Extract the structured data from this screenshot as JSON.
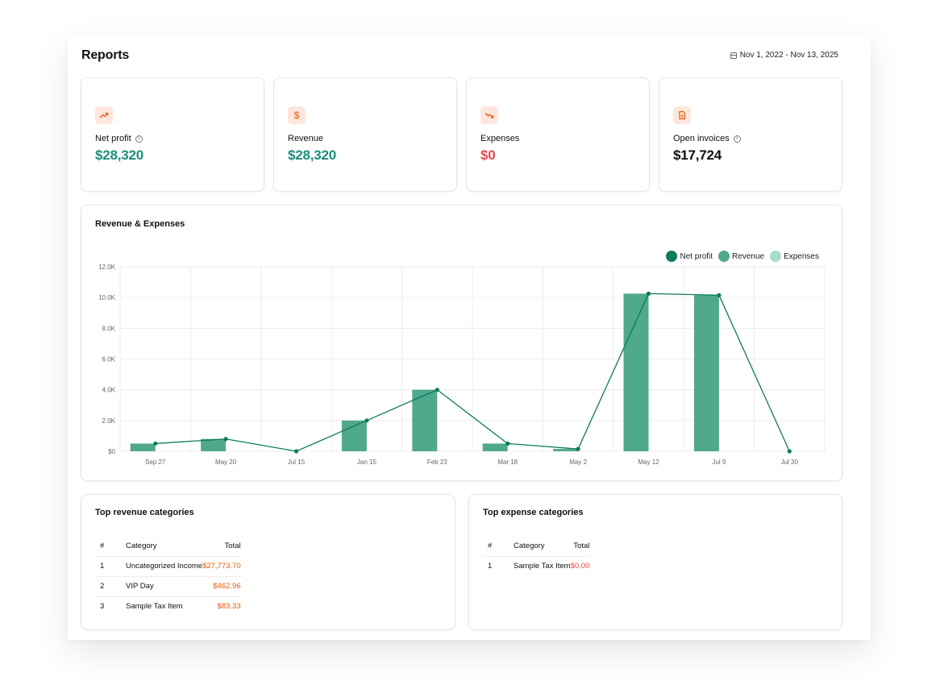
{
  "header": {
    "title": "Reports",
    "date_range": "Nov 1, 2022 - Nov 13, 2025"
  },
  "kpis": [
    {
      "label": "Net profit",
      "value": "$28,320",
      "icon": "trending-up-icon",
      "info": true,
      "tone": "green"
    },
    {
      "label": "Revenue",
      "value": "$28,320",
      "icon": "dollar-icon",
      "info": false,
      "tone": "green"
    },
    {
      "label": "Expenses",
      "value": "$0",
      "icon": "trending-down-icon",
      "info": false,
      "tone": "red"
    },
    {
      "label": "Open invoices",
      "value": "$17,724",
      "icon": "document-icon",
      "info": true,
      "tone": "dark"
    }
  ],
  "chart": {
    "title": "Revenue & Expenses"
  },
  "chart_data": {
    "type": "bar",
    "categories": [
      "Sep 27",
      "May 20",
      "Jul 15",
      "Jan 15",
      "Feb 23",
      "Mar 18",
      "May 2",
      "May 12",
      "Jul 9",
      "Jul 30"
    ],
    "series": [
      {
        "name": "Net profit",
        "type": "line",
        "color": "#0f7a60",
        "values": [
          500,
          800,
          0,
          2000,
          4000,
          500,
          150,
          10250,
          10150,
          0
        ]
      },
      {
        "name": "Revenue",
        "type": "bar",
        "color": "#4fa98c",
        "values": [
          500,
          800,
          0,
          2000,
          4000,
          500,
          150,
          10250,
          10150,
          0
        ]
      },
      {
        "name": "Expenses",
        "type": "bar",
        "color": "#a8dcc9",
        "values": [
          0,
          0,
          0,
          0,
          0,
          0,
          0,
          0,
          0,
          0
        ]
      }
    ],
    "y_ticks": [
      "$0",
      "2.0K",
      "4.0K",
      "6.0K",
      "8.0K",
      "10.0K",
      "12.0K"
    ],
    "ylim": [
      0,
      12000
    ],
    "grid": true,
    "legend": "top-right"
  },
  "revenue_table": {
    "title": "Top revenue categories",
    "headers": [
      "#",
      "Category",
      "Total"
    ],
    "rows": [
      {
        "n": "1",
        "category": "Uncategorized Income",
        "total": "$27,773.70"
      },
      {
        "n": "2",
        "category": "VIP Day",
        "total": "$462.96"
      },
      {
        "n": "3",
        "category": "Sample Tax Item",
        "total": "$83.33"
      }
    ]
  },
  "expense_table": {
    "title": "Top expense categories",
    "headers": [
      "#",
      "Category",
      "Total"
    ],
    "rows": [
      {
        "n": "1",
        "category": "Sample Tax Item",
        "total": "$0.00"
      }
    ]
  }
}
